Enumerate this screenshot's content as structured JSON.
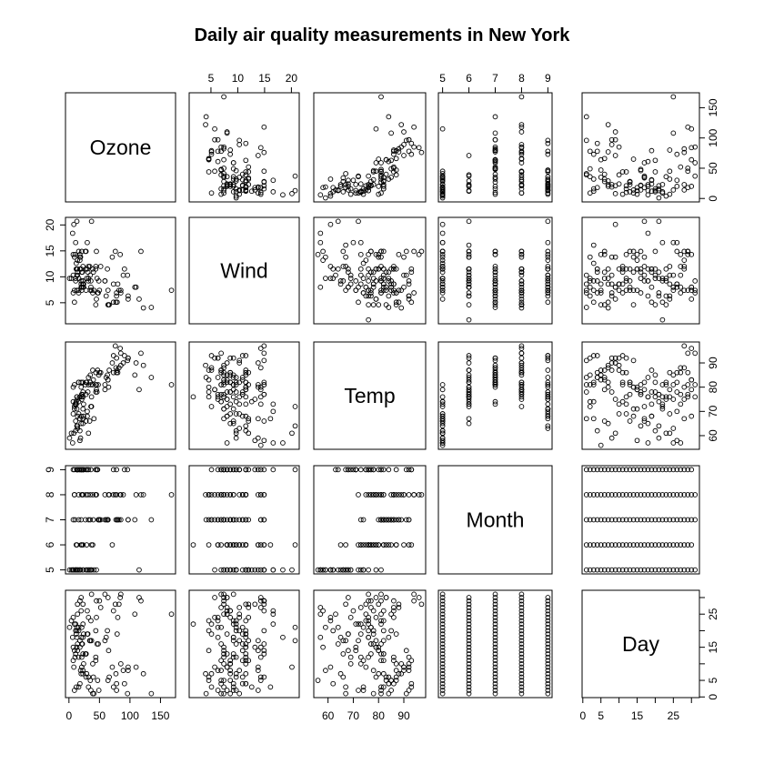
{
  "chart_data": {
    "type": "scatter",
    "title": "Daily air quality measurements in New York",
    "variables": [
      {
        "name": "Ozone",
        "lim": [
          1,
          168
        ],
        "ticks": [
          0,
          50,
          100,
          150
        ]
      },
      {
        "name": "Wind",
        "lim": [
          1.7,
          20.7
        ],
        "ticks": [
          5,
          10,
          15,
          20
        ]
      },
      {
        "name": "Temp",
        "lim": [
          56,
          97
        ],
        "ticks": [
          60,
          70,
          80,
          90
        ]
      },
      {
        "name": "Month",
        "lim": [
          5,
          9
        ],
        "ticks": [
          5,
          6,
          7,
          8,
          9
        ]
      },
      {
        "name": "Day",
        "lim": [
          1,
          31
        ],
        "ticks": [
          0,
          5,
          15,
          25
        ],
        "minor_ticks": [
          10,
          20,
          30
        ]
      }
    ],
    "observations": {
      "columns": [
        "Ozone",
        "Wind",
        "Temp",
        "Month",
        "Day"
      ],
      "rows": [
        [
          41,
          7.4,
          67,
          5,
          1
        ],
        [
          36,
          8.0,
          72,
          5,
          2
        ],
        [
          12,
          12.6,
          74,
          5,
          3
        ],
        [
          18,
          11.5,
          62,
          5,
          4
        ],
        [
          null,
          14.3,
          56,
          5,
          5
        ],
        [
          28,
          14.9,
          66,
          5,
          6
        ],
        [
          23,
          8.6,
          65,
          5,
          7
        ],
        [
          19,
          13.8,
          59,
          5,
          8
        ],
        [
          8,
          20.1,
          61,
          5,
          9
        ],
        [
          null,
          8.6,
          69,
          5,
          10
        ],
        [
          7,
          6.9,
          74,
          5,
          11
        ],
        [
          16,
          9.7,
          69,
          5,
          12
        ],
        [
          11,
          9.2,
          66,
          5,
          13
        ],
        [
          14,
          10.9,
          68,
          5,
          14
        ],
        [
          18,
          13.2,
          58,
          5,
          15
        ],
        [
          14,
          11.5,
          64,
          5,
          16
        ],
        [
          34,
          12.0,
          66,
          5,
          17
        ],
        [
          6,
          18.4,
          57,
          5,
          18
        ],
        [
          30,
          11.5,
          68,
          5,
          19
        ],
        [
          11,
          9.7,
          62,
          5,
          20
        ],
        [
          1,
          9.7,
          59,
          5,
          21
        ],
        [
          11,
          16.6,
          73,
          5,
          22
        ],
        [
          4,
          9.7,
          61,
          5,
          23
        ],
        [
          32,
          12.0,
          61,
          5,
          24
        ],
        [
          null,
          16.6,
          57,
          5,
          25
        ],
        [
          null,
          14.9,
          58,
          5,
          26
        ],
        [
          null,
          8.0,
          57,
          5,
          27
        ],
        [
          23,
          12.0,
          67,
          5,
          28
        ],
        [
          45,
          14.9,
          81,
          5,
          29
        ],
        [
          115,
          5.7,
          79,
          5,
          30
        ],
        [
          37,
          7.4,
          76,
          5,
          31
        ],
        [
          null,
          8.6,
          78,
          6,
          1
        ],
        [
          null,
          9.7,
          74,
          6,
          2
        ],
        [
          null,
          16.1,
          67,
          6,
          3
        ],
        [
          null,
          9.2,
          84,
          6,
          4
        ],
        [
          null,
          8.6,
          85,
          6,
          5
        ],
        [
          null,
          14.3,
          79,
          6,
          6
        ],
        [
          29,
          9.7,
          82,
          6,
          7
        ],
        [
          null,
          6.9,
          87,
          6,
          8
        ],
        [
          71,
          13.8,
          90,
          6,
          9
        ],
        [
          39,
          11.5,
          87,
          6,
          10
        ],
        [
          null,
          10.9,
          93,
          6,
          11
        ],
        [
          null,
          9.2,
          92,
          6,
          12
        ],
        [
          23,
          8.0,
          82,
          6,
          13
        ],
        [
          null,
          13.8,
          80,
          6,
          14
        ],
        [
          null,
          11.5,
          79,
          6,
          15
        ],
        [
          21,
          14.9,
          77,
          6,
          16
        ],
        [
          37,
          20.7,
          72,
          6,
          17
        ],
        [
          20,
          9.2,
          65,
          6,
          18
        ],
        [
          12,
          11.5,
          73,
          6,
          19
        ],
        [
          13,
          10.3,
          76,
          6,
          20
        ],
        [
          null,
          6.3,
          77,
          6,
          21
        ],
        [
          null,
          1.7,
          76,
          6,
          22
        ],
        [
          null,
          4.6,
          76,
          6,
          23
        ],
        [
          null,
          6.3,
          76,
          6,
          24
        ],
        [
          null,
          8.0,
          75,
          6,
          25
        ],
        [
          null,
          8.0,
          78,
          6,
          26
        ],
        [
          null,
          10.3,
          73,
          6,
          27
        ],
        [
          null,
          11.5,
          80,
          6,
          28
        ],
        [
          null,
          14.9,
          77,
          6,
          29
        ],
        [
          null,
          8.0,
          83,
          6,
          30
        ],
        [
          135,
          4.1,
          84,
          7,
          1
        ],
        [
          49,
          9.2,
          85,
          7,
          2
        ],
        [
          32,
          9.2,
          81,
          7,
          3
        ],
        [
          null,
          10.9,
          84,
          7,
          4
        ],
        [
          64,
          4.6,
          83,
          7,
          5
        ],
        [
          40,
          10.9,
          83,
          7,
          6
        ],
        [
          77,
          5.1,
          88,
          7,
          7
        ],
        [
          97,
          6.3,
          92,
          7,
          8
        ],
        [
          97,
          5.7,
          92,
          7,
          9
        ],
        [
          85,
          7.4,
          89,
          7,
          10
        ],
        [
          null,
          8.6,
          82,
          7,
          11
        ],
        [
          10,
          14.3,
          73,
          7,
          12
        ],
        [
          27,
          14.9,
          81,
          7,
          13
        ],
        [
          null,
          14.9,
          91,
          7,
          14
        ],
        [
          7,
          14.3,
          80,
          7,
          15
        ],
        [
          48,
          6.9,
          81,
          7,
          16
        ],
        [
          35,
          10.3,
          82,
          7,
          17
        ],
        [
          61,
          6.3,
          84,
          7,
          18
        ],
        [
          79,
          5.1,
          87,
          7,
          19
        ],
        [
          63,
          11.5,
          85,
          7,
          20
        ],
        [
          16,
          6.9,
          74,
          7,
          21
        ],
        [
          null,
          9.7,
          81,
          7,
          22
        ],
        [
          null,
          11.5,
          82,
          7,
          23
        ],
        [
          80,
          8.6,
          86,
          7,
          24
        ],
        [
          108,
          8.0,
          85,
          7,
          25
        ],
        [
          20,
          8.6,
          82,
          7,
          26
        ],
        [
          52,
          12.0,
          86,
          7,
          27
        ],
        [
          82,
          7.4,
          88,
          7,
          28
        ],
        [
          50,
          7.4,
          86,
          7,
          29
        ],
        [
          64,
          7.4,
          83,
          7,
          30
        ],
        [
          59,
          9.2,
          81,
          7,
          31
        ],
        [
          39,
          6.9,
          81,
          8,
          1
        ],
        [
          9,
          13.8,
          81,
          8,
          2
        ],
        [
          16,
          7.4,
          82,
          8,
          3
        ],
        [
          78,
          6.9,
          86,
          8,
          4
        ],
        [
          35,
          7.4,
          85,
          8,
          5
        ],
        [
          66,
          4.6,
          87,
          8,
          6
        ],
        [
          122,
          4.0,
          89,
          8,
          7
        ],
        [
          89,
          10.3,
          90,
          8,
          8
        ],
        [
          110,
          8.0,
          90,
          8,
          9
        ],
        [
          null,
          8.6,
          92,
          8,
          10
        ],
        [
          null,
          11.5,
          86,
          8,
          11
        ],
        [
          44,
          11.5,
          86,
          8,
          12
        ],
        [
          28,
          11.5,
          82,
          8,
          13
        ],
        [
          65,
          4.6,
          80,
          8,
          14
        ],
        [
          null,
          11.5,
          79,
          8,
          15
        ],
        [
          22,
          10.9,
          77,
          8,
          16
        ],
        [
          59,
          9.2,
          79,
          8,
          17
        ],
        [
          23,
          9.2,
          76,
          8,
          18
        ],
        [
          31,
          10.9,
          78,
          8,
          19
        ],
        [
          44,
          4.6,
          78,
          8,
          20
        ],
        [
          21,
          10.9,
          77,
          8,
          21
        ],
        [
          9,
          5.1,
          72,
          8,
          22
        ],
        [
          null,
          6.3,
          75,
          8,
          23
        ],
        [
          45,
          5.7,
          79,
          8,
          24
        ],
        [
          168,
          7.4,
          81,
          8,
          25
        ],
        [
          73,
          8.6,
          86,
          8,
          26
        ],
        [
          null,
          14.3,
          88,
          8,
          27
        ],
        [
          76,
          14.9,
          97,
          8,
          28
        ],
        [
          118,
          14.9,
          94,
          8,
          29
        ],
        [
          84,
          14.3,
          96,
          8,
          30
        ],
        [
          85,
          6.9,
          94,
          8,
          31
        ],
        [
          96,
          10.3,
          91,
          9,
          1
        ],
        [
          78,
          6.3,
          92,
          9,
          2
        ],
        [
          73,
          5.1,
          93,
          9,
          3
        ],
        [
          91,
          11.5,
          93,
          9,
          4
        ],
        [
          47,
          6.9,
          87,
          9,
          5
        ],
        [
          32,
          9.7,
          84,
          9,
          6
        ],
        [
          20,
          11.5,
          80,
          9,
          7
        ],
        [
          23,
          8.6,
          78,
          9,
          8
        ],
        [
          21,
          8.0,
          75,
          9,
          9
        ],
        [
          24,
          8.6,
          73,
          9,
          10
        ],
        [
          44,
          12.0,
          81,
          9,
          11
        ],
        [
          21,
          7.4,
          76,
          9,
          12
        ],
        [
          28,
          7.4,
          77,
          9,
          13
        ],
        [
          9,
          7.4,
          71,
          9,
          14
        ],
        [
          13,
          7.4,
          71,
          9,
          15
        ],
        [
          46,
          9.7,
          78,
          9,
          16
        ],
        [
          18,
          13.8,
          67,
          9,
          17
        ],
        [
          13,
          11.5,
          76,
          9,
          18
        ],
        [
          24,
          8.0,
          68,
          9,
          19
        ],
        [
          16,
          14.9,
          82,
          9,
          20
        ],
        [
          13,
          20.7,
          64,
          9,
          21
        ],
        [
          23,
          9.2,
          71,
          9,
          22
        ],
        [
          36,
          9.2,
          81,
          9,
          23
        ],
        [
          7,
          10.3,
          69,
          9,
          24
        ],
        [
          14,
          10.3,
          63,
          9,
          25
        ],
        [
          30,
          16.6,
          70,
          9,
          26
        ],
        [
          null,
          6.9,
          77,
          9,
          27
        ],
        [
          14,
          13.2,
          75,
          9,
          28
        ],
        [
          18,
          14.3,
          76,
          9,
          29
        ],
        [
          20,
          8.0,
          68,
          9,
          30
        ]
      ]
    }
  }
}
